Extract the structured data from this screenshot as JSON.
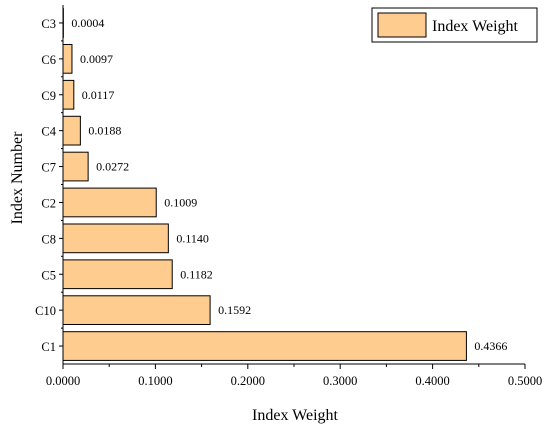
{
  "chart_data": {
    "type": "bar",
    "orientation": "horizontal",
    "categories": [
      "C1",
      "C10",
      "C5",
      "C8",
      "C2",
      "C7",
      "C4",
      "C9",
      "C6",
      "C3"
    ],
    "series": [
      {
        "name": "Index Weight",
        "values": [
          0.4366,
          0.1592,
          0.1182,
          0.114,
          0.1009,
          0.0272,
          0.0188,
          0.0117,
          0.0097,
          0.0004
        ],
        "labels": [
          "0.4366",
          "0.1592",
          "0.1182",
          "0.1140",
          "0.1009",
          "0.0272",
          "0.0188",
          "0.0117",
          "0.0097",
          "0.0004"
        ]
      }
    ],
    "xlabel": "Index Weight",
    "ylabel": "Index Number",
    "xlim": [
      0,
      0.5
    ],
    "xticks": [
      0,
      0.1,
      0.2,
      0.3,
      0.4,
      0.5
    ],
    "xtick_labels": [
      "0.0000",
      "0.1000",
      "0.2000",
      "0.3000",
      "0.4000",
      "0.5000"
    ],
    "grid": false,
    "legend_position": "top-right",
    "colors": {
      "bar_fill": "#FFCC8F",
      "bar_stroke": "#000000"
    }
  }
}
